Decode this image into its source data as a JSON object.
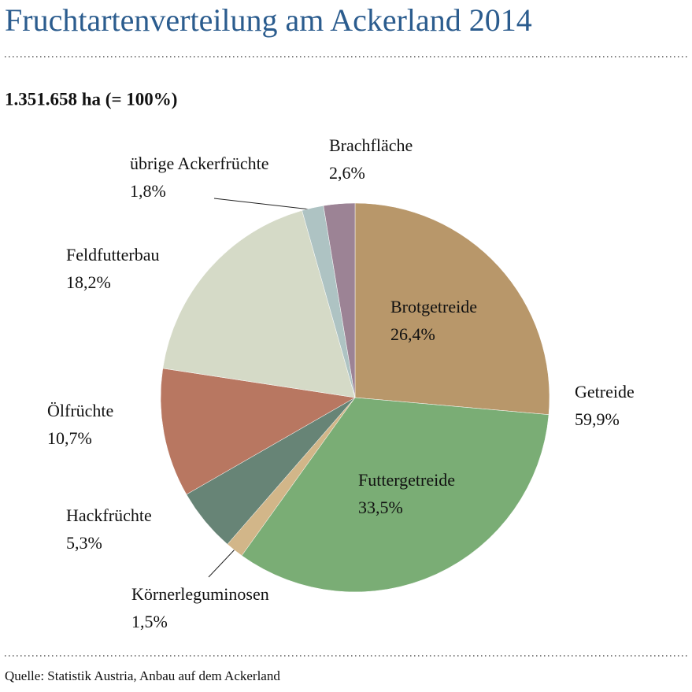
{
  "chart_data": {
    "type": "pie",
    "title": "Fruchtartenverteilung am Ackerland 2014",
    "subtitle": "1.351.658 ha (= 100%)",
    "source": "Quelle: Statistik Austria, Anbau auf dem Ackerland",
    "categories": [
      "Brotgetreide",
      "Futtergetreide",
      "Körnerleguminosen",
      "Hackfrüchte",
      "Ölfrüchte",
      "Feldfutterbau",
      "übrige Ackerfrüchte",
      "Brachfläche"
    ],
    "values": [
      26.4,
      33.5,
      1.5,
      5.3,
      10.7,
      18.2,
      1.8,
      2.6
    ],
    "value_labels": [
      "26,4%",
      "33,5%",
      "1,5%",
      "5,3%",
      "10,7%",
      "18,2%",
      "1,8%",
      "2,6%"
    ],
    "colors": [
      "#b8976a",
      "#7aad75",
      "#d2b689",
      "#678476",
      "#b87761",
      "#d5dac7",
      "#aec3c3",
      "#9c8395"
    ],
    "groups": [
      {
        "name": "Getreide",
        "value": 59.9,
        "value_label": "59,9%"
      }
    ]
  }
}
